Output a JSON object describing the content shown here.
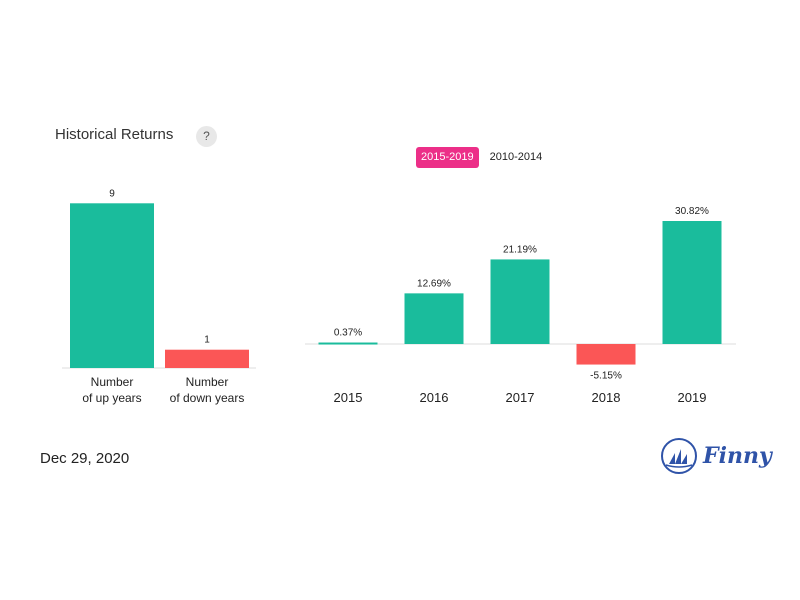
{
  "header": {
    "title": "Historical Returns",
    "help_label": "?"
  },
  "tabs": [
    {
      "label": "2015-2019",
      "active": true
    },
    {
      "label": "2010-2014",
      "active": false
    }
  ],
  "footer": {
    "date": "Dec 29, 2020",
    "brand": "Finny"
  },
  "colors": {
    "positive": "#1abc9c",
    "negative": "#fb5656",
    "tab_active": "#ec2f88",
    "brand": "#2f53a8"
  },
  "chart_data": [
    {
      "type": "bar",
      "categories": [
        "Number\nof up years",
        "Number\nof down years"
      ],
      "values": [
        9,
        1
      ],
      "data_labels": [
        "9",
        "1"
      ],
      "colors": [
        "#1abc9c",
        "#fb5656"
      ],
      "ylim": [
        0,
        10
      ],
      "grid": false,
      "xlabel": "",
      "ylabel": ""
    },
    {
      "type": "bar",
      "categories": [
        "2015",
        "2016",
        "2017",
        "2018",
        "2019"
      ],
      "values": [
        0.37,
        12.69,
        21.19,
        -5.15,
        30.82
      ],
      "data_labels": [
        "0.37%",
        "12.69%",
        "21.19%",
        "-5.15%",
        "30.82%"
      ],
      "ylim": [
        -8,
        34
      ],
      "grid": false,
      "xlabel": "",
      "ylabel": ""
    }
  ]
}
